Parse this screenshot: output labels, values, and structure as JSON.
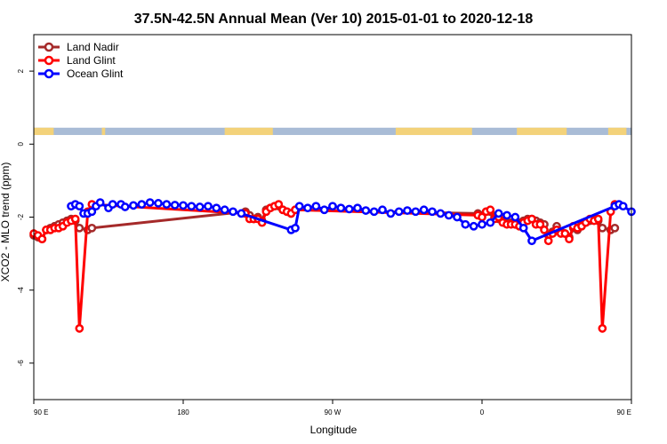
{
  "chart_data": {
    "type": "line",
    "title": "37.5N-42.5N Annual Mean (Ver 10)   2015-01-01 to 2020-12-18",
    "xlabel": "Longitude",
    "ylabel": "XCO2 - MLO trend (ppm)",
    "xlim": [
      90,
      450
    ],
    "ylim": [
      -7,
      3
    ],
    "x_ticks": [
      {
        "value": 90,
        "label": "90 E"
      },
      {
        "value": 180,
        "label": "180"
      },
      {
        "value": 270,
        "label": "90 W"
      },
      {
        "value": 360,
        "label": "0"
      },
      {
        "value": 450,
        "label": "90 E"
      },
      {
        "value": 540,
        "label": "180"
      }
    ],
    "y_ticks": [
      {
        "value": 2,
        "label": "2"
      },
      {
        "value": 0,
        "label": "0"
      },
      {
        "value": -2,
        "label": "-2"
      },
      {
        "value": -4,
        "label": "-4"
      },
      {
        "value": -6,
        "label": "-6"
      }
    ],
    "grid": false,
    "legend_position": "top-left",
    "map_strip": {
      "y_range": [
        0.25,
        0.45
      ],
      "land_color": "#f3d27a",
      "ocean_color": "#a9bcd6",
      "land_segments": [
        [
          90,
          102
        ],
        [
          131,
          133
        ],
        [
          205,
          234
        ],
        [
          308,
          354
        ],
        [
          381,
          411
        ],
        [
          436,
          447
        ],
        [
          452,
          462
        ],
        [
          491,
          498
        ]
      ]
    },
    "series": [
      {
        "name": "Land Nadir",
        "color": "#a52a2a",
        "points": [
          [
            90,
            -2.5
          ],
          [
            92.5,
            -2.55
          ],
          [
            95,
            -2.6
          ],
          [
            97.5,
            -2.35
          ],
          [
            100,
            -2.3
          ],
          [
            102.5,
            -2.25
          ],
          [
            105,
            -2.2
          ],
          [
            107.5,
            -2.15
          ],
          [
            110,
            -2.1
          ],
          [
            112.5,
            -2.05
          ],
          [
            115,
            -2.1
          ],
          [
            117.5,
            -2.3
          ],
          [
            122.5,
            -2.35
          ],
          [
            125,
            -2.3
          ],
          [
            217.5,
            -1.85
          ],
          [
            220,
            -1.95
          ],
          [
            222.5,
            -2.05
          ],
          [
            225,
            -2.0
          ],
          [
            227.5,
            -2.1
          ],
          [
            230,
            -1.8
          ],
          [
            232.5,
            -1.75
          ],
          [
            235,
            -1.7
          ],
          [
            237.5,
            -1.7
          ],
          [
            240,
            -1.8
          ],
          [
            242.5,
            -1.85
          ],
          [
            245,
            -1.9
          ],
          [
            247.5,
            -1.8
          ],
          [
            357.5,
            -1.9
          ],
          [
            360,
            -1.95
          ],
          [
            362.5,
            -1.85
          ],
          [
            365,
            -1.85
          ],
          [
            367.5,
            -2.0
          ],
          [
            370,
            -2.05
          ],
          [
            372.5,
            -2.1
          ],
          [
            375,
            -2.15
          ],
          [
            377.5,
            -2.15
          ],
          [
            380,
            -2.2
          ],
          [
            382.5,
            -2.15
          ],
          [
            385,
            -2.1
          ],
          [
            387.5,
            -2.05
          ],
          [
            390,
            -2.05
          ],
          [
            392.5,
            -2.1
          ],
          [
            395,
            -2.15
          ],
          [
            397.5,
            -2.2
          ],
          [
            400,
            -2.5
          ],
          [
            402.5,
            -2.4
          ],
          [
            405,
            -2.25
          ],
          [
            407.5,
            -2.4
          ],
          [
            410,
            -2.45
          ],
          [
            412.5,
            -2.55
          ],
          [
            415,
            -2.3
          ],
          [
            417.5,
            -2.35
          ],
          [
            420,
            -2.2
          ],
          [
            422.5,
            -2.15
          ],
          [
            425,
            -2.1
          ],
          [
            427.5,
            -2.05
          ],
          [
            430,
            -2.1
          ],
          [
            432.5,
            -2.3
          ],
          [
            437.5,
            -2.35
          ],
          [
            440,
            -2.3
          ]
        ]
      },
      {
        "name": "Land Glint",
        "color": "#ff0000",
        "points": [
          [
            90,
            -2.45
          ],
          [
            92.5,
            -2.5
          ],
          [
            95,
            -2.6
          ],
          [
            97.5,
            -2.35
          ],
          [
            100,
            -2.35
          ],
          [
            102.5,
            -2.3
          ],
          [
            105,
            -2.3
          ],
          [
            107.5,
            -2.25
          ],
          [
            110,
            -2.15
          ],
          [
            112.5,
            -2.1
          ],
          [
            115,
            -2.05
          ],
          [
            117.5,
            -5.05
          ],
          [
            122.5,
            -1.85
          ],
          [
            125,
            -1.65
          ],
          [
            217.5,
            -1.9
          ],
          [
            220,
            -2.05
          ],
          [
            222.5,
            -2.05
          ],
          [
            225,
            -2.05
          ],
          [
            227.5,
            -2.15
          ],
          [
            230,
            -1.85
          ],
          [
            232.5,
            -1.75
          ],
          [
            235,
            -1.7
          ],
          [
            237.5,
            -1.65
          ],
          [
            240,
            -1.8
          ],
          [
            242.5,
            -1.85
          ],
          [
            245,
            -1.9
          ],
          [
            247.5,
            -1.8
          ],
          [
            357.5,
            -1.95
          ],
          [
            360,
            -2.0
          ],
          [
            362.5,
            -1.85
          ],
          [
            365,
            -1.8
          ],
          [
            367.5,
            -2.05
          ],
          [
            370,
            -2.0
          ],
          [
            372.5,
            -2.15
          ],
          [
            375,
            -2.2
          ],
          [
            377.5,
            -2.2
          ],
          [
            380,
            -2.2
          ],
          [
            382.5,
            -2.25
          ],
          [
            385,
            -2.15
          ],
          [
            387.5,
            -2.1
          ],
          [
            390,
            -2.05
          ],
          [
            392.5,
            -2.2
          ],
          [
            395,
            -2.2
          ],
          [
            397.5,
            -2.35
          ],
          [
            400,
            -2.65
          ],
          [
            402.5,
            -2.45
          ],
          [
            405,
            -2.35
          ],
          [
            407.5,
            -2.45
          ],
          [
            410,
            -2.45
          ],
          [
            412.5,
            -2.6
          ],
          [
            415,
            -2.25
          ],
          [
            417.5,
            -2.3
          ],
          [
            420,
            -2.25
          ],
          [
            422.5,
            -2.15
          ],
          [
            425,
            -2.05
          ],
          [
            427.5,
            -2.1
          ],
          [
            430,
            -2.05
          ],
          [
            432.5,
            -5.05
          ],
          [
            437.5,
            -1.85
          ],
          [
            440,
            -1.65
          ]
        ]
      },
      {
        "name": "Ocean Glint",
        "color": "#0000ff",
        "points": [
          [
            112.5,
            -1.7
          ],
          [
            115,
            -1.65
          ],
          [
            117.5,
            -1.7
          ],
          [
            120,
            -1.9
          ],
          [
            122.5,
            -1.9
          ],
          [
            125,
            -1.85
          ],
          [
            127.5,
            -1.7
          ],
          [
            130,
            -1.6
          ],
          [
            135,
            -1.75
          ],
          [
            137.5,
            -1.65
          ],
          [
            142.5,
            -1.65
          ],
          [
            145,
            -1.72
          ],
          [
            150,
            -1.68
          ],
          [
            155,
            -1.65
          ],
          [
            160,
            -1.6
          ],
          [
            165,
            -1.62
          ],
          [
            170,
            -1.65
          ],
          [
            175,
            -1.67
          ],
          [
            180,
            -1.68
          ],
          [
            185,
            -1.7
          ],
          [
            190,
            -1.72
          ],
          [
            195,
            -1.7
          ],
          [
            200,
            -1.75
          ],
          [
            205,
            -1.8
          ],
          [
            210,
            -1.85
          ],
          [
            215,
            -1.9
          ],
          [
            245,
            -2.35
          ],
          [
            247.5,
            -2.3
          ],
          [
            250,
            -1.7
          ],
          [
            255,
            -1.75
          ],
          [
            260,
            -1.7
          ],
          [
            265,
            -1.8
          ],
          [
            270,
            -1.7
          ],
          [
            275,
            -1.75
          ],
          [
            280,
            -1.78
          ],
          [
            285,
            -1.75
          ],
          [
            290,
            -1.82
          ],
          [
            295,
            -1.85
          ],
          [
            300,
            -1.8
          ],
          [
            305,
            -1.9
          ],
          [
            310,
            -1.85
          ],
          [
            315,
            -1.82
          ],
          [
            320,
            -1.85
          ],
          [
            325,
            -1.8
          ],
          [
            330,
            -1.85
          ],
          [
            335,
            -1.9
          ],
          [
            340,
            -1.95
          ],
          [
            345,
            -2.0
          ],
          [
            350,
            -2.2
          ],
          [
            355,
            -2.25
          ],
          [
            360,
            -2.2
          ],
          [
            365,
            -2.15
          ],
          [
            370,
            -1.9
          ],
          [
            375,
            -1.95
          ],
          [
            380,
            -2.0
          ],
          [
            385,
            -2.3
          ],
          [
            390,
            -2.65
          ],
          [
            440,
            -1.7
          ],
          [
            442.5,
            -1.65
          ],
          [
            445,
            -1.7
          ],
          [
            450,
            -1.85
          ],
          [
            455,
            -1.8
          ],
          [
            460,
            -1.7
          ],
          [
            465,
            -1.6
          ],
          [
            470,
            -1.75
          ],
          [
            475,
            -1.65
          ],
          [
            480,
            -1.65
          ],
          [
            485,
            -1.7
          ],
          [
            490,
            -1.7
          ]
        ]
      }
    ]
  }
}
